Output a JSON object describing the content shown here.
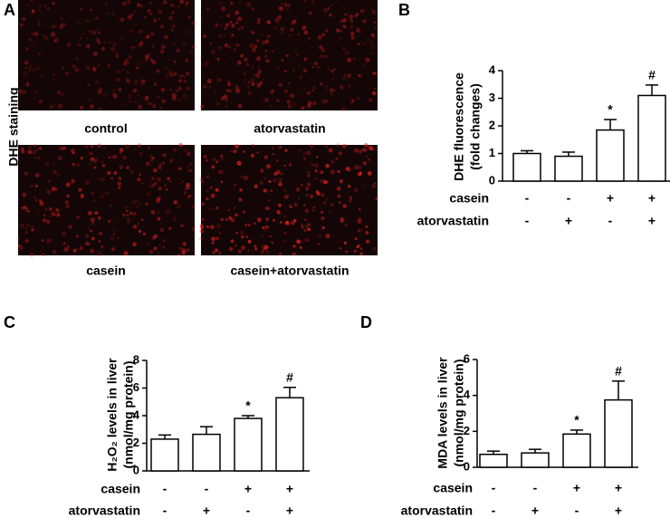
{
  "figure_a": {
    "label": "A",
    "ylabel": "DHE staining",
    "captions": [
      "control",
      "atorvastatin",
      "casein",
      "casein+atorvastatin"
    ]
  },
  "chart_data": [
    {
      "type": "bar",
      "panel": "B",
      "ylabel": [
        "DHE fluorescence",
        "(fold changes)"
      ],
      "values": [
        1.0,
        0.9,
        1.85,
        3.1
      ],
      "errors": [
        0.1,
        0.15,
        0.38,
        0.38
      ],
      "annotations": [
        null,
        null,
        "*",
        "#"
      ],
      "factors": [
        {
          "name": "casein",
          "levels": [
            "-",
            "-",
            "+",
            "+"
          ]
        },
        {
          "name": "atorvastatin",
          "levels": [
            "-",
            "+",
            "-",
            "+"
          ]
        }
      ],
      "ylim": [
        0,
        4
      ],
      "yticks": [
        0,
        1,
        2,
        3,
        4
      ],
      "color": "#ffffff"
    },
    {
      "type": "bar",
      "panel": "C",
      "ylabel": [
        "H₂O₂ levels in liver",
        "(nmol/mg protein)"
      ],
      "values": [
        2.3,
        2.65,
        3.8,
        5.3
      ],
      "errors": [
        0.3,
        0.55,
        0.2,
        0.75
      ],
      "annotations": [
        null,
        null,
        "*",
        "#"
      ],
      "factors": [
        {
          "name": "casein",
          "levels": [
            "-",
            "-",
            "+",
            "+"
          ]
        },
        {
          "name": "atorvastatin",
          "levels": [
            "-",
            "+",
            "-",
            "+"
          ]
        }
      ],
      "ylim": [
        0,
        8
      ],
      "yticks": [
        0,
        2,
        4,
        6,
        8
      ],
      "color": "#ffffff"
    },
    {
      "type": "bar",
      "panel": "D",
      "ylabel": [
        "MDA levels in liver",
        "(nmol/mg protein)"
      ],
      "values": [
        0.72,
        0.8,
        1.85,
        3.75
      ],
      "errors": [
        0.18,
        0.2,
        0.22,
        1.05
      ],
      "annotations": [
        null,
        null,
        "*",
        "#"
      ],
      "factors": [
        {
          "name": "casein",
          "levels": [
            "-",
            "-",
            "+",
            "+"
          ]
        },
        {
          "name": "atorvastatin",
          "levels": [
            "-",
            "+",
            "-",
            "+"
          ]
        }
      ],
      "ylim": [
        0,
        6
      ],
      "yticks": [
        0,
        2,
        4,
        6
      ],
      "color": "#ffffff"
    }
  ]
}
